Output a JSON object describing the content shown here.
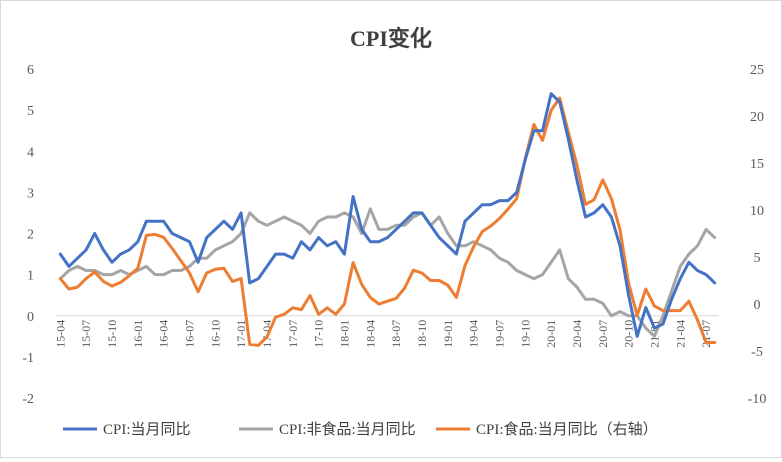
{
  "chart_data": {
    "type": "line",
    "title": "CPI变化",
    "x_tick_labels": [
      "15-04",
      "15-07",
      "15-10",
      "16-01",
      "16-04",
      "16-07",
      "16-10",
      "17-01",
      "17-04",
      "17-07",
      "17-10",
      "18-01",
      "18-04",
      "18-07",
      "18-10",
      "19-01",
      "19-04",
      "19-07",
      "19-10",
      "20-01",
      "20-04",
      "20-07",
      "20-10",
      "21-01",
      "21-04",
      "21-07"
    ],
    "y_left": {
      "min": -2,
      "max": 6,
      "ticks": [
        -2,
        -1,
        0,
        1,
        2,
        3,
        4,
        5,
        6
      ]
    },
    "y_right": {
      "min": -10,
      "max": 25,
      "ticks": [
        -10,
        -5,
        0,
        5,
        10,
        15,
        20,
        25
      ]
    },
    "grid": "off",
    "legend_position": "bottom",
    "series": [
      {
        "name": "CPI:当月同比",
        "axis": "left",
        "color": "#4472C4",
        "values": [
          1.5,
          1.2,
          1.4,
          1.6,
          2.0,
          1.6,
          1.3,
          1.5,
          1.6,
          1.8,
          2.3,
          2.3,
          2.3,
          2.0,
          1.9,
          1.8,
          1.3,
          1.9,
          2.1,
          2.3,
          2.1,
          2.5,
          0.8,
          0.9,
          1.2,
          1.5,
          1.5,
          1.4,
          1.8,
          1.6,
          1.9,
          1.7,
          1.8,
          1.5,
          2.9,
          2.1,
          1.8,
          1.8,
          1.9,
          2.1,
          2.3,
          2.5,
          2.5,
          2.2,
          1.9,
          1.7,
          1.5,
          2.3,
          2.5,
          2.7,
          2.7,
          2.8,
          2.8,
          3.0,
          3.8,
          4.5,
          4.5,
          5.4,
          5.2,
          4.3,
          3.3,
          2.4,
          2.5,
          2.7,
          2.4,
          1.7,
          0.5,
          -0.5,
          0.2,
          -0.3,
          -0.2,
          0.4,
          0.9,
          1.3,
          1.1,
          1.0,
          0.8
        ]
      },
      {
        "name": "CPI:非食品:当月同比",
        "axis": "left",
        "color": "#A5A5A5",
        "values": [
          0.9,
          1.1,
          1.2,
          1.1,
          1.1,
          1.0,
          1.0,
          1.1,
          1.0,
          1.1,
          1.2,
          1.0,
          1.0,
          1.1,
          1.1,
          1.2,
          1.4,
          1.4,
          1.6,
          1.7,
          1.8,
          2.0,
          2.5,
          2.3,
          2.2,
          2.3,
          2.4,
          2.3,
          2.2,
          2.0,
          2.3,
          2.4,
          2.4,
          2.5,
          2.4,
          2.0,
          2.6,
          2.1,
          2.1,
          2.2,
          2.2,
          2.4,
          2.5,
          2.2,
          2.4,
          2.0,
          1.7,
          1.7,
          1.8,
          1.7,
          1.6,
          1.4,
          1.3,
          1.1,
          1.0,
          0.9,
          1.0,
          1.3,
          1.6,
          0.9,
          0.7,
          0.4,
          0.4,
          0.3,
          0.0,
          0.1,
          0.0,
          0.0,
          -0.3,
          -0.5,
          0.0,
          0.6,
          1.2,
          1.5,
          1.7,
          2.1,
          1.9
        ]
      },
      {
        "name": "CPI:食品:当月同比（右轴）",
        "axis": "right",
        "color": "#ED7D31",
        "values": [
          2.7,
          1.6,
          1.8,
          2.7,
          3.4,
          2.4,
          1.9,
          2.3,
          3.0,
          3.8,
          7.3,
          7.4,
          7.1,
          5.9,
          4.6,
          3.3,
          1.3,
          3.3,
          3.7,
          3.8,
          2.4,
          2.7,
          -4.3,
          -4.4,
          -3.5,
          -1.4,
          -1.1,
          -0.4,
          -0.6,
          0.9,
          -1.1,
          -0.4,
          -1.1,
          0.0,
          4.4,
          2.1,
          0.7,
          0.0,
          0.3,
          0.6,
          1.7,
          3.6,
          3.3,
          2.5,
          2.5,
          2.0,
          0.7,
          4.1,
          6.1,
          7.7,
          8.3,
          9.1,
          10.1,
          11.2,
          15.5,
          19.1,
          17.4,
          20.6,
          21.9,
          18.3,
          14.8,
          10.6,
          11.1,
          13.2,
          11.2,
          7.9,
          2.2,
          -1.2,
          1.6,
          -0.2,
          -0.7,
          -0.7,
          -0.7,
          0.3,
          -1.7,
          -4.1,
          -4.1
        ]
      }
    ]
  }
}
